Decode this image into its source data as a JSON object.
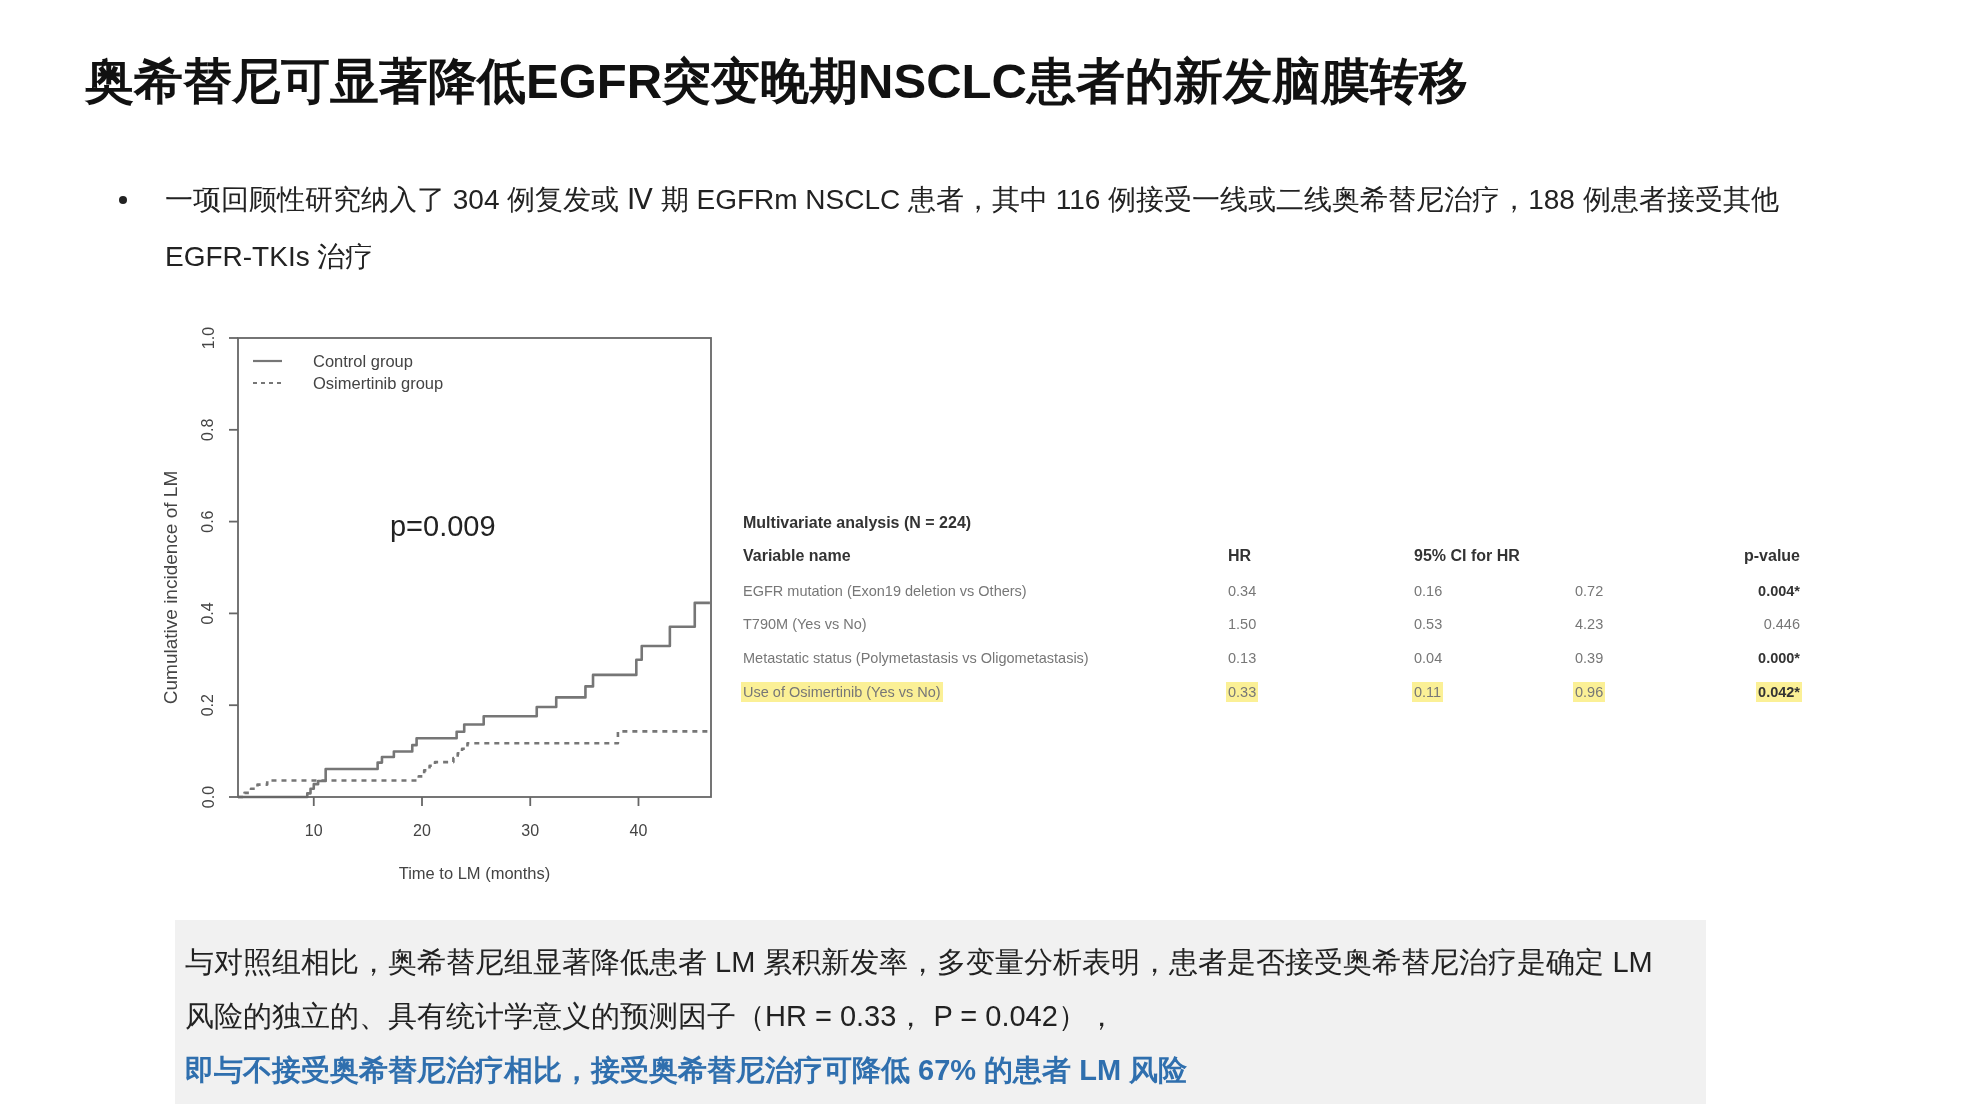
{
  "chart_data": [
    {
      "type": "step",
      "title": "奥希替尼可显著降低EGFR突变晚期NSCLC患者的新发脑膜转移",
      "subtitle": "一项回顾性研究纳入了 304 例复发或 Ⅳ 期 EGFRm NSCLC 患者，其中 116 例接受一线或二线奥希替尼治疗，188 例患者接受其他 EGFR-TKIs 治疗",
      "xlabel": "Time to LM (months)",
      "ylabel": "Cumulative incidence of LM",
      "xlim": [
        3,
        46.7
      ],
      "xticks": [
        10,
        20,
        30,
        40
      ],
      "ylim": [
        0,
        1
      ],
      "yticks": [
        {
          "value": 0,
          "label": "0.0"
        },
        0.2,
        0.4,
        0.6,
        0.8,
        {
          "value": 1,
          "label": "1.0"
        }
      ],
      "legend": "top left",
      "annotations": [
        "p=0.009"
      ],
      "series": [
        {
          "name": "Control group",
          "color": "#767676",
          "line_style": "solid",
          "x": [
            3,
            9.4,
            9.7,
            10,
            10.4,
            11.1,
            15.9,
            16.3,
            17.4,
            19.1,
            19.5,
            23.2,
            23.9,
            25.7,
            30.6,
            32.4,
            35.1,
            35.8,
            39.8,
            40.3,
            42.9,
            45.2,
            46.6
          ],
          "values": [
            0,
            0.008,
            0.018,
            0.028,
            0.035,
            0.061,
            0.075,
            0.087,
            0.099,
            0.113,
            0.128,
            0.142,
            0.158,
            0.176,
            0.196,
            0.217,
            0.241,
            0.266,
            0.299,
            0.329,
            0.371,
            0.423,
            0.423
          ]
        },
        {
          "name": "Osimertinib group",
          "color": "#767676",
          "line_style": "dashed",
          "x": [
            3,
            3.6,
            4.2,
            4.8,
            5.7,
            19.7,
            20.2,
            20.7,
            21.2,
            22.9,
            23.3,
            23.7,
            24.2,
            38.1,
            46.5
          ],
          "values": [
            0,
            0.009,
            0.018,
            0.027,
            0.036,
            0.045,
            0.058,
            0.068,
            0.076,
            0.085,
            0.095,
            0.105,
            0.117,
            0.143,
            0.143
          ]
        }
      ]
    },
    {
      "type": "other",
      "title": "Multivariate analysis (N = 224)",
      "annotations": [
        "Variable name",
        "HR",
        "95% CI for HR",
        "p-value",
        "EGFR mutation (Exon19 deletion vs Others)",
        "0.34",
        "0.16",
        "0.72",
        "0.004*",
        "T790M (Yes vs No)",
        "1.50",
        "0.53",
        "4.23",
        "0.446",
        "Metastatic status (Polymetastasis vs Oligometastasis)",
        "0.13",
        "0.04",
        "0.39",
        "0.000*",
        "Use of Osimertinib (Yes vs No)",
        "0.33",
        "0.11",
        "0.96",
        "0.042*"
      ]
    },
    {
      "type": "other",
      "annotations": [
        "与对照组相比，奥希替尼组显著降低患者 LM 累积新发率，多变量分析表明，患者是否接受奥希替尼治疗是确定 LM 风险的独立的、具有统计学意义的预测因子（HR = 0.33， P = 0.042），",
        "即与不接受奥希替尼治疗相比，接受奥希替尼治疗可降低 67% 的患者 LM 风险"
      ]
    }
  ]
}
